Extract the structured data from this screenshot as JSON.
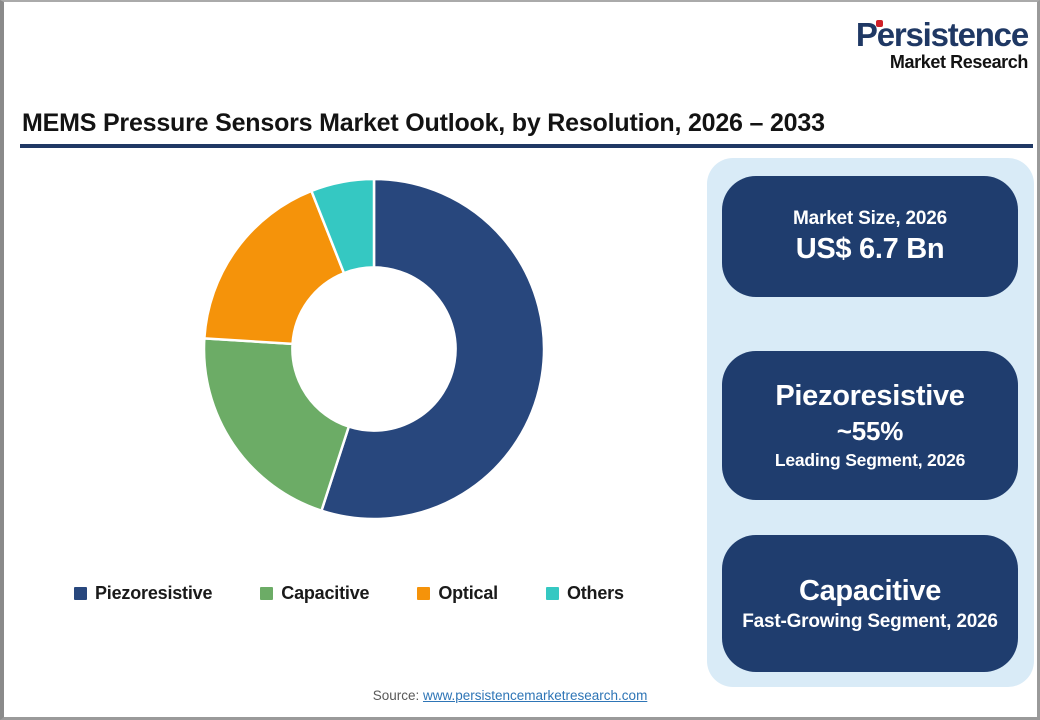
{
  "title": "MEMS Pressure Sensors Market Outlook, by Resolution, 2026 – 2033",
  "logo": {
    "brand": "Persistence",
    "subtitle": "Market Research",
    "dot_color": "#D02028",
    "brand_color": "#1F3864"
  },
  "chart_data": {
    "type": "pie",
    "subtype": "donut",
    "title": "MEMS Pressure Sensors Market Outlook, by Resolution, 2026 – 2033",
    "categories": [
      "Piezoresistive",
      "Capacitive",
      "Optical",
      "Others"
    ],
    "values": [
      55,
      21,
      18,
      6
    ],
    "unit": "%",
    "colors": [
      "#28477D",
      "#6CAC66",
      "#F5930A",
      "#35C8C2"
    ],
    "start_angle_deg": 0,
    "clockwise": true,
    "donut_hole_ratio": 0.48,
    "slice_gap_color": "#FFFFFF",
    "legend_position": "bottom"
  },
  "panel": {
    "cards": [
      {
        "line1": "Market Size, 2026",
        "line2": "US$ 6.7 Bn"
      },
      {
        "line1": "Piezoresistive",
        "line2": "~55%",
        "line3": "Leading Segment, 2026"
      },
      {
        "line1": "Capacitive",
        "line2": "Fast-Growing Segment, 2026"
      }
    ],
    "card_color": "#1F3D6E",
    "panel_bg": "#D9EBF7"
  },
  "source": {
    "label": "Source:",
    "url": "www.persistencemarketresearch.com",
    "link_color": "#2E75B6"
  },
  "accent": {
    "title_rule": "#1F3864"
  }
}
